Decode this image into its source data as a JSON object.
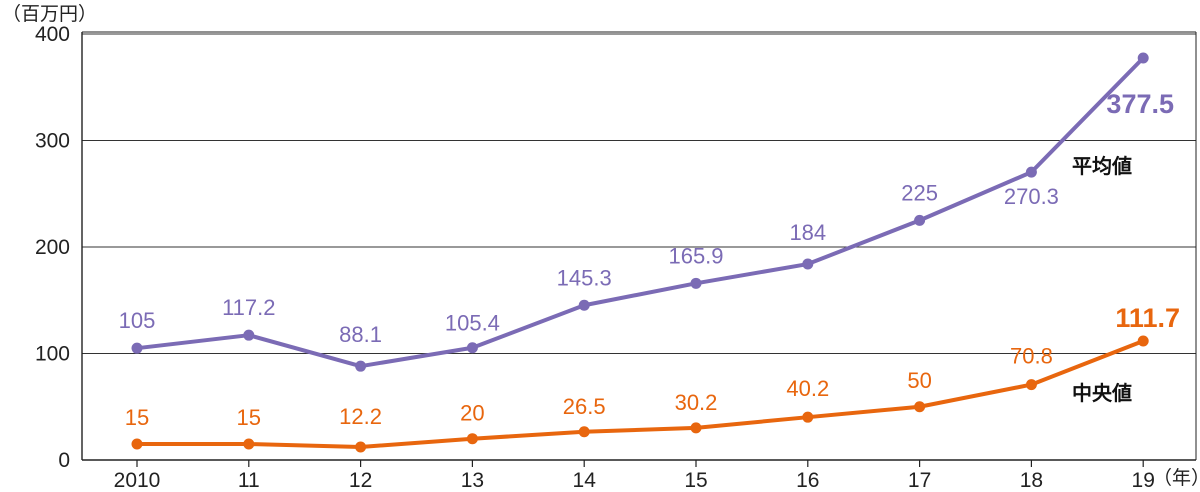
{
  "chart_data": {
    "type": "line",
    "y_unit": "（百万円）",
    "x_unit": "（年）",
    "categories": [
      "2010",
      "11",
      "12",
      "13",
      "14",
      "15",
      "16",
      "17",
      "18",
      "19"
    ],
    "ylim": [
      0,
      400
    ],
    "yticks": [
      0,
      100,
      200,
      300,
      400
    ],
    "grid": true,
    "series": [
      {
        "name": "平均値",
        "color": "#7b6bb5",
        "values": [
          105,
          117.2,
          88.1,
          105.4,
          145.3,
          165.9,
          184,
          225,
          270.3,
          377.5
        ],
        "labels": [
          "105",
          "117.2",
          "88.1",
          "105.4",
          "145.3",
          "165.9",
          "184",
          "225",
          "270.3",
          "377.5"
        ]
      },
      {
        "name": "中央値",
        "color": "#e8660e",
        "values": [
          15,
          15,
          12.2,
          20,
          26.5,
          30.2,
          40.2,
          50,
          70.8,
          111.7
        ],
        "labels": [
          "15",
          "15",
          "12.2",
          "20",
          "26.5",
          "30.2",
          "40.2",
          "50",
          "70.8",
          "111.7"
        ]
      }
    ]
  }
}
